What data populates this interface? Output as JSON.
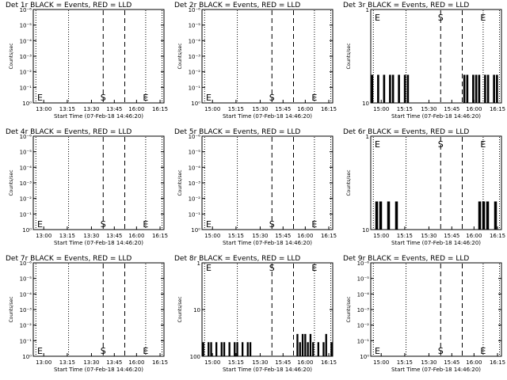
{
  "figure": {
    "background": "#ffffff",
    "ink": "#000000"
  },
  "chart_data": [
    {
      "type": "line",
      "title": "Det 1r BLACK = Events, RED = LLD",
      "xlabel": "Start Time (07-Feb-18 14:46:20)",
      "ylabel": "Counts/sec",
      "log_y": true,
      "y_ticks": [
        "10⁰",
        "10⁻¹",
        "10⁻²",
        "10⁻³",
        "10⁻⁴",
        "10⁻⁵",
        "10⁻⁶"
      ],
      "x_ticks": [
        "13:00",
        "13:15",
        "13:30",
        "13:45",
        "16:00",
        "16:15"
      ],
      "markers": [
        {
          "label": "E"
        },
        {
          "label": "S"
        },
        {
          "label": "E"
        }
      ],
      "series": []
    },
    {
      "type": "line",
      "title": "Det 2r BLACK = Events, RED = LLD",
      "xlabel": "Start Time (07-Feb-18 14:46:20)",
      "ylabel": "Counts/sec",
      "log_y": true,
      "y_ticks": [
        "10⁰",
        "10⁻¹",
        "10⁻²",
        "10⁻³",
        "10⁻⁴",
        "10⁻⁵",
        "10⁻⁶"
      ],
      "x_ticks": [
        "15:00",
        "15:15",
        "15:30",
        "15:45",
        "16:00",
        "16:15"
      ],
      "markers": [
        {
          "label": "E"
        },
        {
          "label": "S"
        },
        {
          "label": "E"
        }
      ],
      "series": []
    },
    {
      "type": "line",
      "title": "Det 3r BLACK = Events, RED = LLD",
      "xlabel": "Start Time (07-Feb-18 14:46:20)",
      "ylabel": "Counts/sec",
      "log_y": true,
      "y_ticks": [
        "10",
        "1"
      ],
      "x_ticks": [
        "15:00",
        "15:15",
        "15:30",
        "15:45",
        "16:00",
        "16:15"
      ],
      "markers": [
        {
          "label": "E"
        },
        {
          "label": "S"
        },
        {
          "label": "E"
        }
      ],
      "series": [
        {
          "color": "#000000",
          "values": [
            2,
            1,
            2,
            1,
            2,
            1,
            2,
            2,
            1,
            2,
            1,
            2,
            2,
            1,
            0,
            0,
            0,
            0,
            0,
            0,
            0,
            0,
            0,
            0,
            0,
            0,
            0,
            0,
            0,
            0,
            0,
            2,
            2,
            1,
            2,
            2,
            2,
            1,
            2,
            2,
            1,
            2,
            2,
            1
          ]
        }
      ]
    },
    {
      "type": "line",
      "title": "Det 4r BLACK = Events, RED = LLD",
      "xlabel": "Start Time (07-Feb-18 14:46:20)",
      "ylabel": "Counts/sec",
      "log_y": true,
      "y_ticks": [
        "10⁰",
        "10⁻¹",
        "10⁻²",
        "10⁻³",
        "10⁻⁴",
        "10⁻⁵",
        "10⁻⁶"
      ],
      "x_ticks": [
        "13:00",
        "13:15",
        "13:30",
        "13:45",
        "16:00",
        "16:15"
      ],
      "markers": [
        {
          "label": "E"
        },
        {
          "label": "S"
        },
        {
          "label": "E"
        }
      ],
      "series": []
    },
    {
      "type": "line",
      "title": "Det 5r BLACK = Events, RED = LLD",
      "xlabel": "Start Time (07-Feb-18 14:46:20)",
      "ylabel": "Counts/sec",
      "log_y": true,
      "y_ticks": [
        "10⁰",
        "10⁻¹",
        "10⁻²",
        "10⁻³",
        "10⁻⁴",
        "10⁻⁵",
        "10⁻⁶"
      ],
      "x_ticks": [
        "15:00",
        "15:15",
        "15:30",
        "15:45",
        "16:00",
        "16:15"
      ],
      "markers": [
        {
          "label": "E"
        },
        {
          "label": "S"
        },
        {
          "label": "E"
        }
      ],
      "series": []
    },
    {
      "type": "line",
      "title": "Det 6r BLACK = Events, RED = LLD",
      "xlabel": "Start Time (07-Feb-18 14:46:20)",
      "ylabel": "Counts/sec",
      "log_y": true,
      "y_ticks": [
        "10",
        "1"
      ],
      "x_ticks": [
        "15:00",
        "15:15",
        "15:30",
        "15:45",
        "16:00",
        "16:15"
      ],
      "markers": [
        {
          "label": "E"
        },
        {
          "label": "S"
        },
        {
          "label": "E"
        }
      ],
      "series": [
        {
          "color": "#000000",
          "values": [
            1,
            2,
            2,
            1,
            2,
            1,
            2,
            1,
            0,
            0,
            0,
            0,
            0,
            0,
            0,
            0,
            0,
            0,
            0,
            0,
            0,
            0,
            0,
            0,
            0,
            0,
            1,
            2,
            2,
            2,
            1,
            2,
            1
          ]
        }
      ]
    },
    {
      "type": "line",
      "title": "Det 7r BLACK = Events, RED = LLD",
      "xlabel": "Start Time (07-Feb-18 14:46:20)",
      "ylabel": "Counts/sec",
      "log_y": true,
      "y_ticks": [
        "10⁰",
        "10⁻¹",
        "10⁻²",
        "10⁻³",
        "10⁻⁴",
        "10⁻⁵",
        "10⁻⁶"
      ],
      "x_ticks": [
        "13:00",
        "13:15",
        "13:30",
        "13:45",
        "16:00",
        "16:15"
      ],
      "markers": [
        {
          "label": "E"
        },
        {
          "label": "S"
        },
        {
          "label": "E"
        }
      ],
      "series": []
    },
    {
      "type": "line",
      "title": "Det 8r BLACK = Events, RED = LLD",
      "xlabel": "Start Time (07-Feb-18 14:46:20)",
      "ylabel": "Counts/sec",
      "log_y": true,
      "y_ticks": [
        "100",
        "10",
        "1"
      ],
      "x_ticks": [
        "15:00",
        "15:15",
        "15:30",
        "15:45",
        "16:00",
        "16:15"
      ],
      "markers": [
        {
          "label": "E"
        },
        {
          "label": "S"
        },
        {
          "label": "E"
        }
      ],
      "series": [
        {
          "color": "#000000",
          "values": [
            2,
            1,
            2,
            2,
            1,
            2,
            1,
            2,
            2,
            1,
            2,
            1,
            2,
            2,
            1,
            2,
            1,
            2,
            2,
            1,
            0,
            0,
            0,
            0,
            0,
            0,
            0,
            0,
            0,
            0,
            0,
            0,
            0,
            0,
            0,
            0,
            3,
            2,
            3,
            3,
            2,
            3,
            2,
            1,
            2,
            1,
            2,
            3,
            1,
            2
          ]
        }
      ]
    },
    {
      "type": "line",
      "title": "Det 9r BLACK = Events, RED = LLD",
      "xlabel": "Start Time (07-Feb-18 14:46:20)",
      "ylabel": "Counts/sec",
      "log_y": true,
      "y_ticks": [
        "10⁰",
        "10⁻¹",
        "10⁻²",
        "10⁻³",
        "10⁻⁴",
        "10⁻⁵",
        "10⁻⁶"
      ],
      "x_ticks": [
        "15:00",
        "15:15",
        "15:30",
        "15:45",
        "16:00",
        "16:15"
      ],
      "markers": [
        {
          "label": "E"
        },
        {
          "label": "S"
        },
        {
          "label": "E"
        }
      ],
      "series": []
    }
  ]
}
